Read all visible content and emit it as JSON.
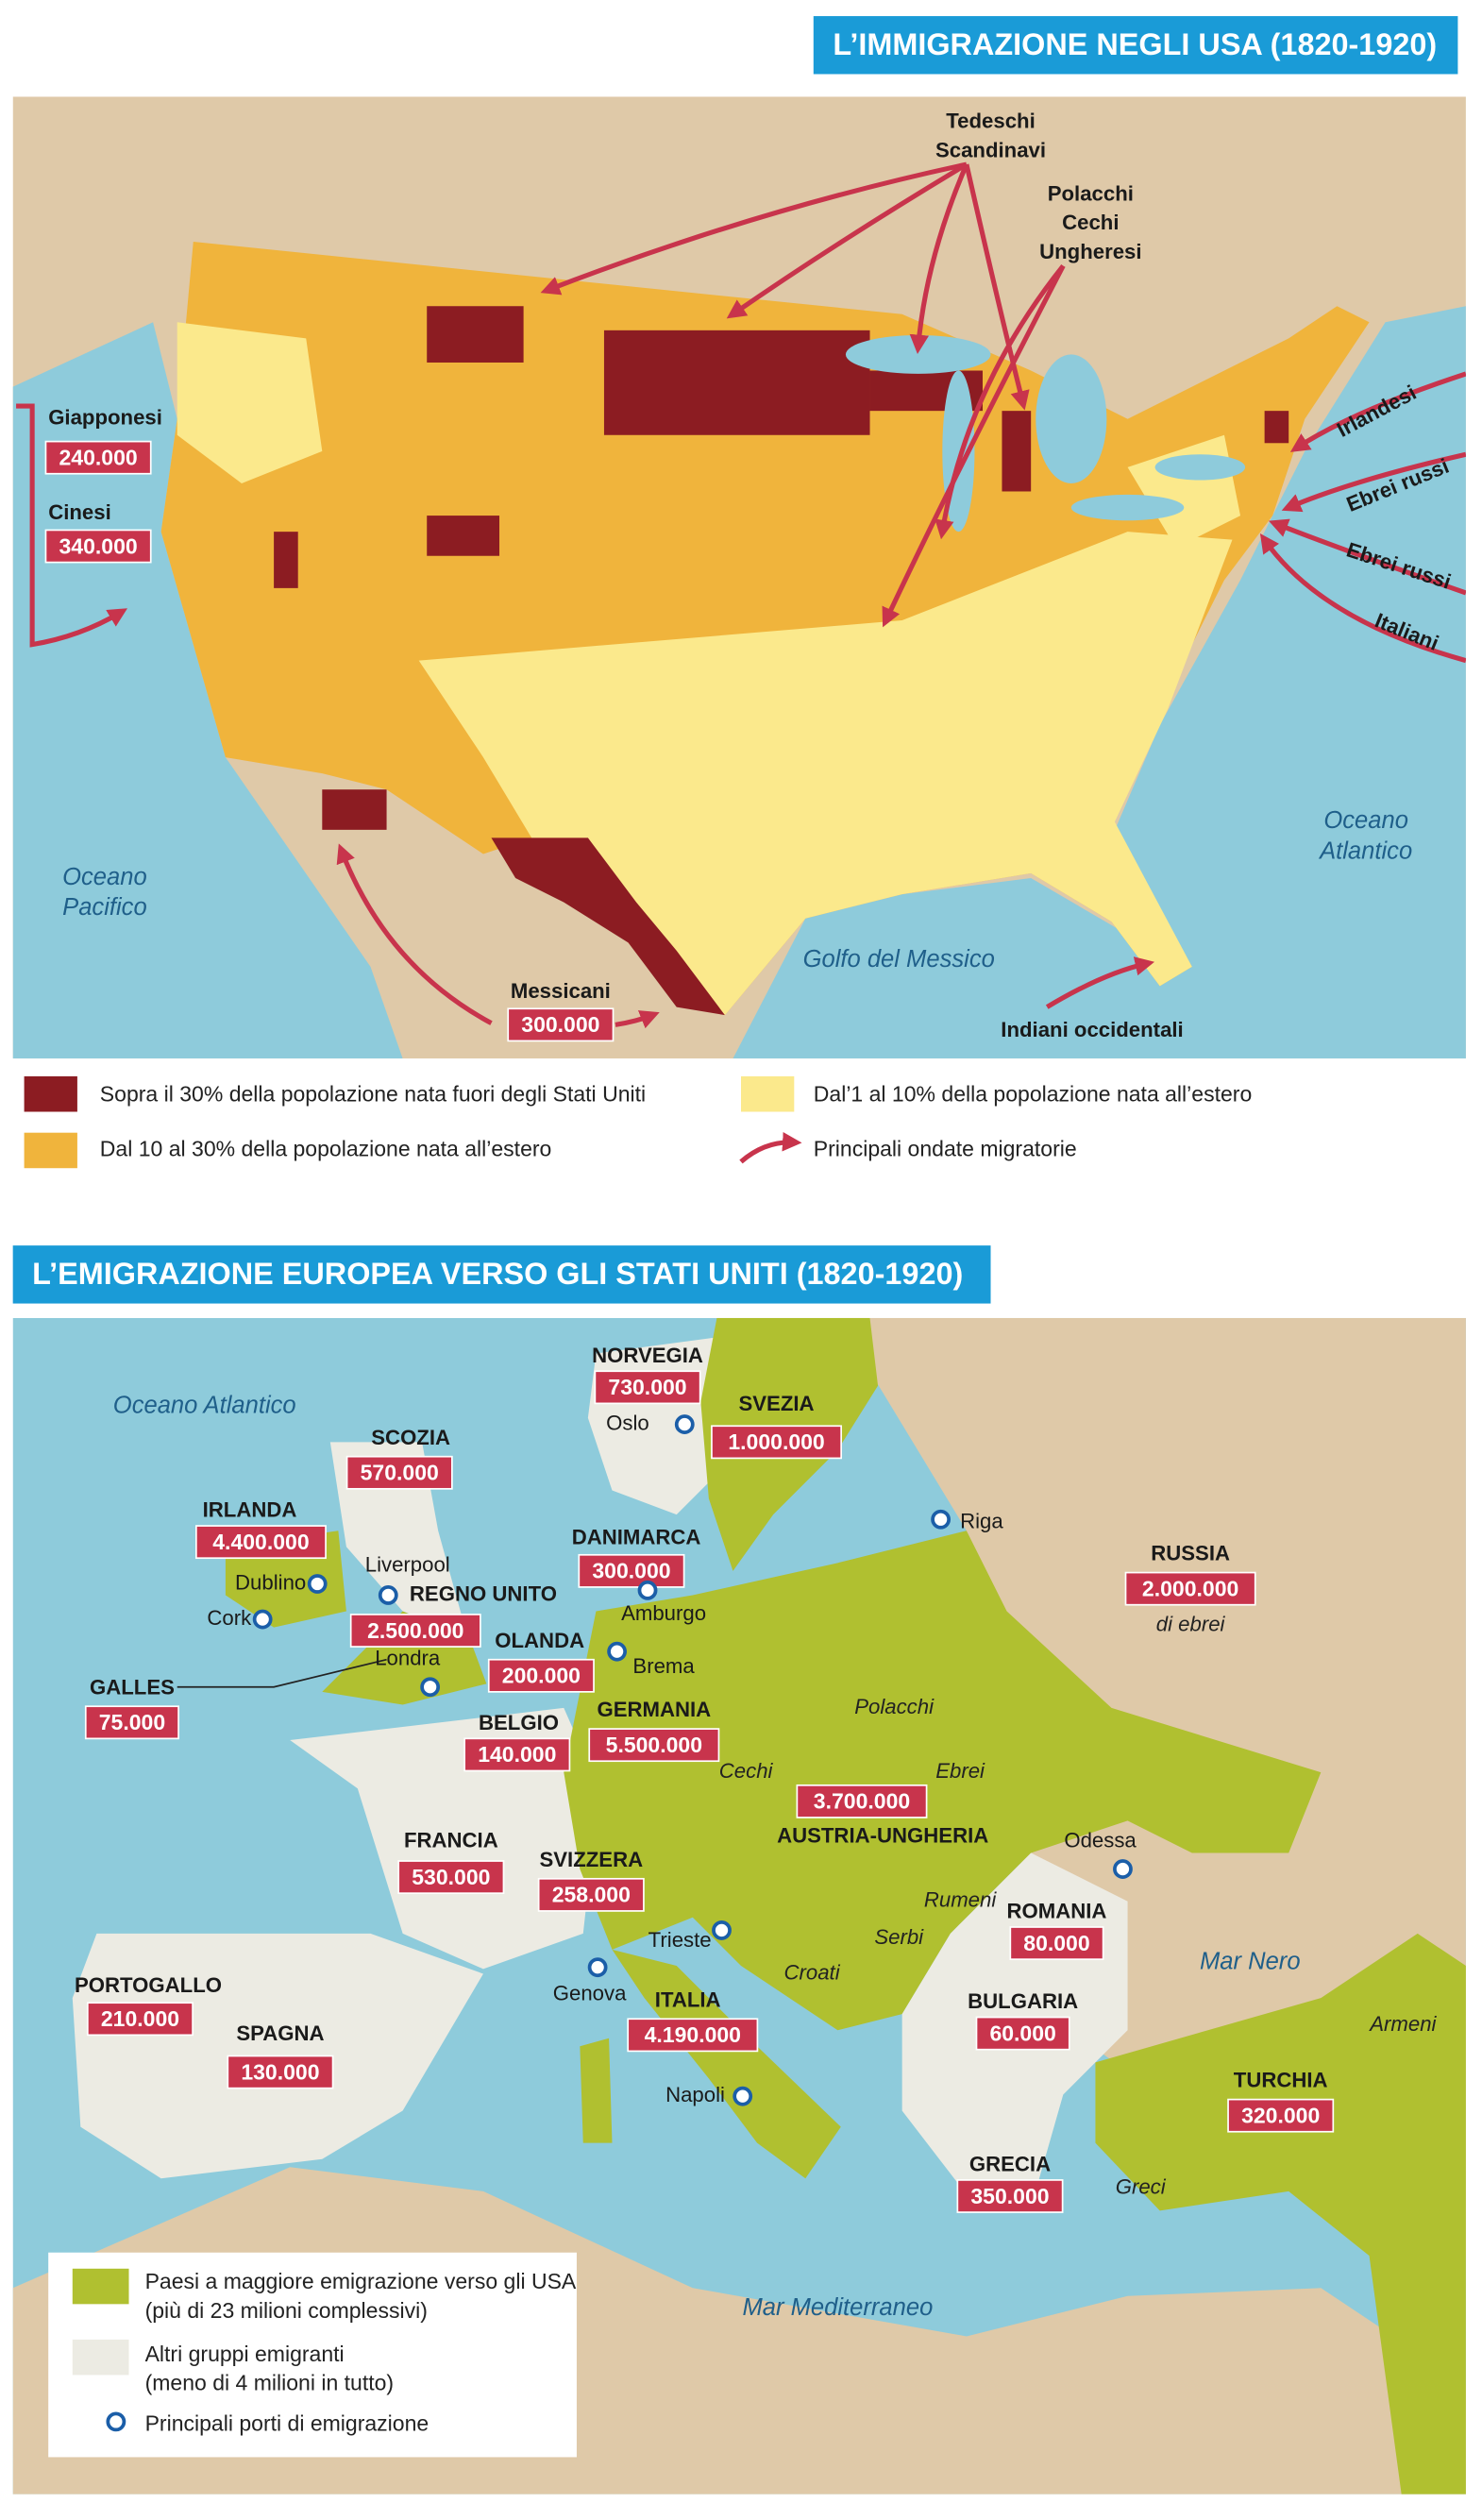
{
  "usa": {
    "title": "L’IMMIGRAZIONE NEGLI USA (1820-1920)",
    "waters": [
      {
        "lines": [
          "Oceano",
          "Pacifico"
        ]
      },
      {
        "lines": [
          "Oceano",
          "Atlantico"
        ]
      },
      {
        "lines": [
          "Golfo del Messico"
        ]
      }
    ],
    "groups": [
      {
        "lines": [
          "Tedeschi",
          "Scandinavi"
        ]
      },
      {
        "lines": [
          "Polacchi",
          "Cechi",
          "Ungheresi"
        ]
      },
      {
        "lines": [
          "Giapponesi"
        ],
        "count": "240.000"
      },
      {
        "lines": [
          "Cinesi"
        ],
        "count": "340.000"
      },
      {
        "lines": [
          "Messicani"
        ],
        "count": "300.000"
      },
      {
        "lines": [
          "Indiani occidentali"
        ]
      },
      {
        "lines": [
          "Irlandesi"
        ]
      },
      {
        "lines": [
          "Ebrei russi"
        ]
      },
      {
        "lines": [
          "Ebrei russi"
        ]
      },
      {
        "lines": [
          "Italiani"
        ]
      }
    ],
    "legend": [
      "Sopra il 30% della popolazione nata fuori degli Stati Uniti",
      "Dal 10 al 30% della popolazione nata all’estero",
      "Dal’1 al 10% della popolazione nata all’estero",
      "Principali ondate migratorie"
    ]
  },
  "europe": {
    "title": "L’EMIGRAZIONE EUROPEA VERSO GLI STATI UNITI (1820-1920)",
    "waters": [
      "Oceano Atlantico",
      "Mar Nero",
      "Mar Mediterraneo"
    ],
    "countries": [
      {
        "name": "NORVEGIA",
        "emigrants": "730.000"
      },
      {
        "name": "SVEZIA",
        "emigrants": "1.000.000"
      },
      {
        "name": "SCOZIA",
        "emigrants": "570.000"
      },
      {
        "name": "IRLANDA",
        "emigrants": "4.400.000"
      },
      {
        "name": "DANIMARCA",
        "emigrants": "300.000"
      },
      {
        "name": "REGNO UNITO",
        "emigrants": "2.500.000"
      },
      {
        "name": "GALLES",
        "emigrants": "75.000"
      },
      {
        "name": "OLANDA",
        "emigrants": "200.000"
      },
      {
        "name": "BELGIO",
        "emigrants": "140.000"
      },
      {
        "name": "GERMANIA",
        "emigrants": "5.500.000"
      },
      {
        "name": "RUSSIA",
        "emigrants": "2.000.000",
        "note": "di ebrei"
      },
      {
        "name": "AUSTRIA-UNGHERIA",
        "emigrants": "3.700.000"
      },
      {
        "name": "FRANCIA",
        "emigrants": "530.000"
      },
      {
        "name": "SVIZZERA",
        "emigrants": "258.000"
      },
      {
        "name": "ROMANIA",
        "emigrants": "80.000"
      },
      {
        "name": "PORTOGALLO",
        "emigrants": "210.000"
      },
      {
        "name": "SPAGNA",
        "emigrants": "130.000"
      },
      {
        "name": "ITALIA",
        "emigrants": "4.190.000"
      },
      {
        "name": "BULGARIA",
        "emigrants": "60.000"
      },
      {
        "name": "TURCHIA",
        "emigrants": "320.000"
      },
      {
        "name": "GRECIA",
        "emigrants": "350.000"
      }
    ],
    "ports": [
      "Oslo",
      "Riga",
      "Dublino",
      "Cork",
      "Liverpool",
      "Londra",
      "Amburgo",
      "Brema",
      "Odessa",
      "Trieste",
      "Genova",
      "Napoli"
    ],
    "peoples": [
      "Polacchi",
      "Ebrei",
      "Cechi",
      "Rumeni",
      "Serbi",
      "Croati",
      "Armeni",
      "Greci"
    ],
    "legend": [
      {
        "lines": [
          "Paesi a maggiore emigrazione verso gli USA",
          "(più di 23 milioni complessivi)"
        ]
      },
      {
        "lines": [
          "Altri gruppi emigranti",
          "(meno di 4 milioni in tutto)"
        ]
      },
      {
        "lines": [
          "Principali porti di emigrazione"
        ]
      }
    ]
  }
}
